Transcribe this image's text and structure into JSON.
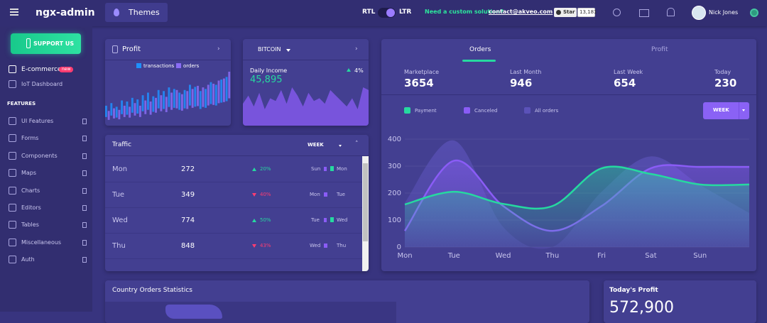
{
  "header": {
    "brand": "ngx-admin",
    "theme_button": "Themes",
    "rtl": "RTL",
    "ltr": "LTR",
    "promo": "Need a custom solution?",
    "email": "contact@akveo.com",
    "star": "Star",
    "star_count": "13,181",
    "user": "Nick Jones"
  },
  "sidebar": {
    "support": "SUPPORT US",
    "menu": [
      {
        "label": "E-commerce",
        "badge": "new"
      },
      {
        "label": "IoT Dashboard"
      }
    ],
    "section": "FEATURES",
    "features": [
      "UI Features",
      "Forms",
      "Components",
      "Maps",
      "Charts",
      "Editors",
      "Tables",
      "Miscellaneous",
      "Auth"
    ]
  },
  "profit_card": {
    "title": "Profit",
    "chart": {
      "type": "bar",
      "series": [
        {
          "name": "transactions",
          "color": "#1e90ff",
          "values": [
            30,
            35,
            28,
            40,
            38,
            45,
            42,
            50,
            55,
            48,
            60,
            58,
            65,
            62,
            55,
            60,
            70,
            66,
            58,
            62,
            75,
            70,
            80,
            85
          ]
        },
        {
          "name": "orders",
          "color": "#8a6cf5",
          "values": [
            20,
            25,
            22,
            30,
            28,
            35,
            30,
            40,
            38,
            45,
            50,
            47,
            55,
            60,
            52,
            58,
            62,
            68,
            65,
            70,
            72,
            78,
            82,
            95
          ]
        }
      ]
    }
  },
  "bitcoin_card": {
    "currency": "BITCOIN",
    "label": "Daily Income",
    "change": "4%",
    "value": "45,895",
    "chart": {
      "type": "area",
      "color": "#8a5cf6",
      "values": [
        40,
        55,
        35,
        60,
        30,
        50,
        45,
        65,
        40,
        70,
        55,
        35,
        60,
        45,
        50,
        40,
        65,
        55,
        45,
        35,
        50,
        30,
        70,
        65
      ]
    }
  },
  "traffic": {
    "title": "Traffic",
    "period": "WEEK",
    "rows": [
      {
        "day": "Mon",
        "value": 272,
        "delta": "20%",
        "trend": "up",
        "compare": [
          "Sun",
          "Mon"
        ]
      },
      {
        "day": "Tue",
        "value": 349,
        "delta": "40%",
        "trend": "down",
        "compare": [
          "Mon",
          "Tue"
        ]
      },
      {
        "day": "Wed",
        "value": 774,
        "delta": "50%",
        "trend": "up",
        "compare": [
          "Tue",
          "Wed"
        ]
      },
      {
        "day": "Thu",
        "value": 848,
        "delta": "43%",
        "trend": "down",
        "compare": [
          "Wed",
          "Thu"
        ]
      }
    ]
  },
  "orders": {
    "tabs": [
      "Orders",
      "Profit"
    ],
    "stats": [
      {
        "label": "Marketplace",
        "value": 3654
      },
      {
        "label": "Last Month",
        "value": 946
      },
      {
        "label": "Last Week",
        "value": 654
      },
      {
        "label": "Today",
        "value": 230
      }
    ],
    "period": "WEEK",
    "chart": {
      "type": "area",
      "categories": [
        "Mon",
        "Tue",
        "Wed",
        "Thu",
        "Fri",
        "Sat",
        "Sun",
        null
      ],
      "series": [
        {
          "name": "Payment",
          "color": "#26d9a0",
          "values": [
            158,
            205,
            160,
            152,
            292,
            271,
            232,
            232
          ]
        },
        {
          "name": "Canceled",
          "color": "#8a5cf6",
          "values": [
            60,
            320,
            152,
            60,
            152,
            292,
            297,
            297
          ]
        },
        {
          "name": "All orders",
          "color": "#5b52b8",
          "values": [
            165,
            395,
            74,
            0,
            205,
            336,
            230,
            126
          ]
        }
      ],
      "ylim": [
        0,
        400
      ],
      "yticks": [
        0,
        100,
        200,
        300,
        400
      ],
      "grid": true
    }
  },
  "country": {
    "title": "Country Orders Statistics"
  },
  "today_profit": {
    "title": "Today's Profit",
    "value": "572,900"
  }
}
